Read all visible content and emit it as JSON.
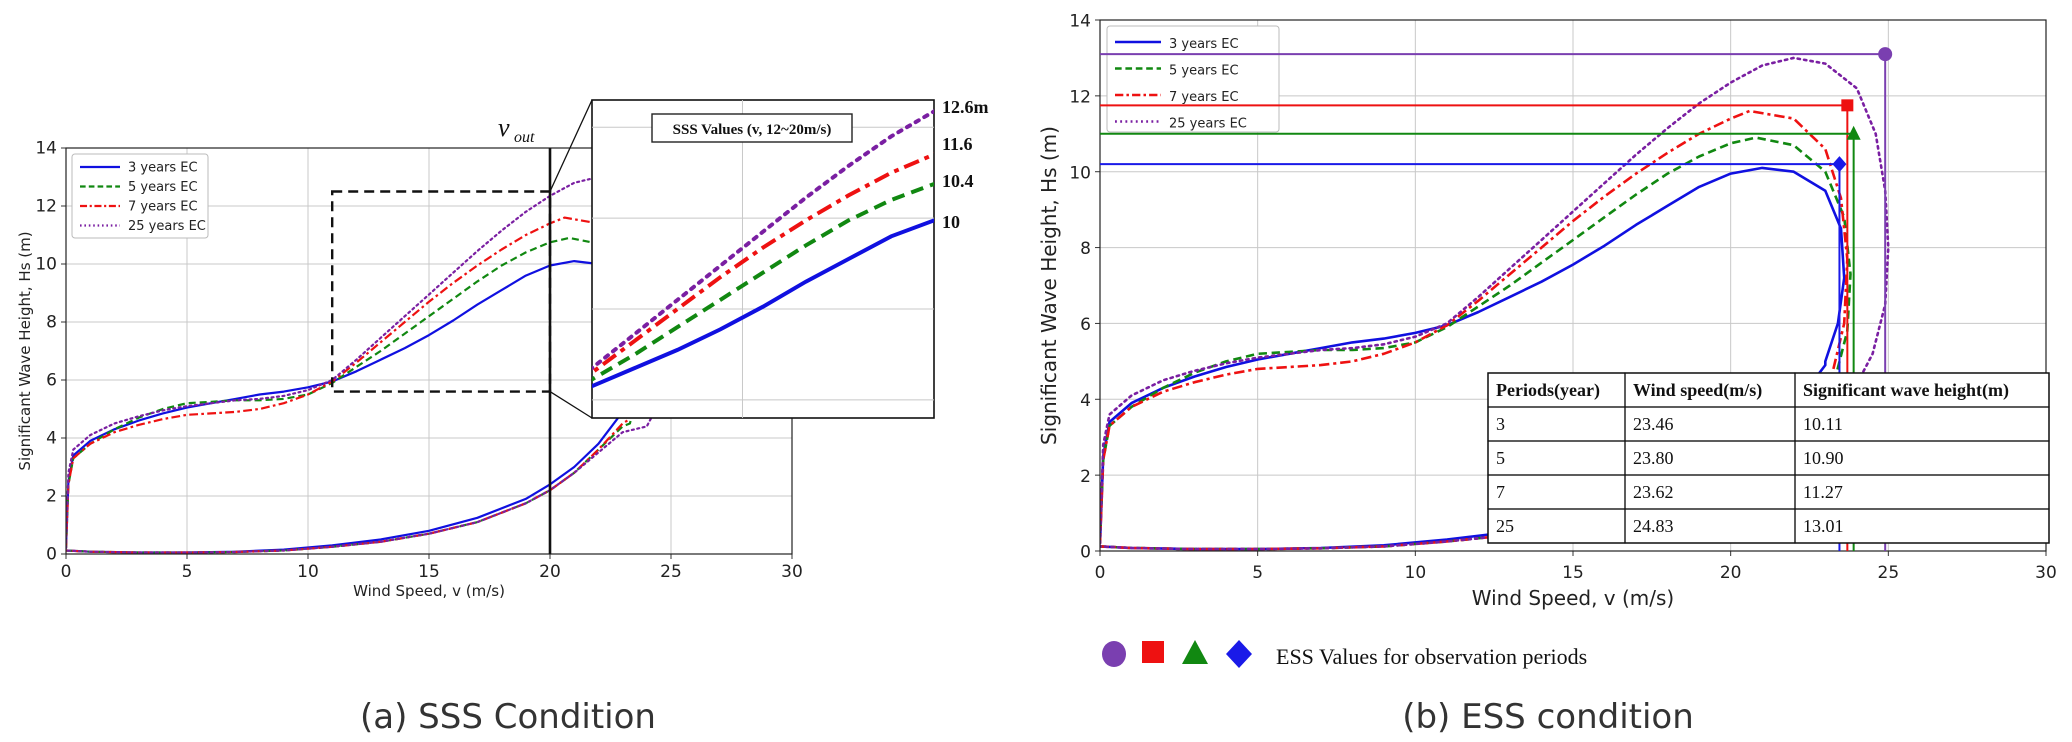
{
  "captions": {
    "a": "(a) SSS Condition",
    "b": "(b) ESS condition"
  },
  "vout_label": "v",
  "vout_sub": "out",
  "inset_title": "SSS Values (v, 12~20m/s)",
  "inset_labels": [
    "12.6m",
    "11.6",
    "10.4",
    "10"
  ],
  "ess_legend_text": "ESS Values for observation periods",
  "table": {
    "headers": [
      "Periods(year)",
      "Wind speed(m/s)",
      "Significant wave height(m)"
    ],
    "rows": [
      [
        "3",
        "23.46",
        "10.11"
      ],
      [
        "5",
        "23.80",
        "10.90"
      ],
      [
        "7",
        "23.62",
        "11.27"
      ],
      [
        "25",
        "24.83",
        "13.01"
      ]
    ]
  },
  "chart_data": [
    {
      "type": "line",
      "panel": "a",
      "title": "",
      "xlabel": "Wind Speed, v (m/s)",
      "ylabel": "Significant Wave Height, Hs (m)",
      "xlim": [
        0,
        30
      ],
      "ylim": [
        0,
        14
      ],
      "xticks": [
        0,
        5,
        10,
        15,
        20,
        25,
        30
      ],
      "yticks": [
        0,
        2,
        4,
        6,
        8,
        10,
        12,
        14
      ],
      "grid": true,
      "legend_position": "top-left",
      "vertical_line_x": 20,
      "zoom_box": {
        "x": [
          11,
          20
        ],
        "y": [
          5.6,
          12.5
        ]
      },
      "series": [
        {
          "name": "3 years EC",
          "color": "#1010e0",
          "dash": "solid",
          "upper": [
            [
              0,
              0.2
            ],
            [
              0.1,
              2.5
            ],
            [
              0.3,
              3.4
            ],
            [
              1,
              3.9
            ],
            [
              2,
              4.3
            ],
            [
              3,
              4.6
            ],
            [
              4,
              4.85
            ],
            [
              5,
              5.05
            ],
            [
              6,
              5.2
            ],
            [
              7,
              5.35
            ],
            [
              8,
              5.5
            ],
            [
              9,
              5.6
            ],
            [
              10,
              5.75
            ],
            [
              11,
              5.95
            ],
            [
              12,
              6.3
            ],
            [
              13,
              6.7
            ],
            [
              14,
              7.1
            ],
            [
              15,
              7.55
            ],
            [
              16,
              8.05
            ],
            [
              17,
              8.6
            ],
            [
              18,
              9.1
            ],
            [
              19,
              9.6
            ],
            [
              20,
              9.95
            ],
            [
              21,
              10.1
            ],
            [
              22,
              10.0
            ],
            [
              23,
              9.5
            ],
            [
              23.5,
              8.5
            ],
            [
              23.6,
              7.2
            ],
            [
              23.4,
              6.0
            ],
            [
              23,
              5.0
            ]
          ],
          "lower": [
            [
              0,
              0.12
            ],
            [
              1,
              0.08
            ],
            [
              3,
              0.05
            ],
            [
              5,
              0.05
            ],
            [
              7,
              0.08
            ],
            [
              9,
              0.15
            ],
            [
              11,
              0.3
            ],
            [
              13,
              0.5
            ],
            [
              15,
              0.8
            ],
            [
              17,
              1.25
            ],
            [
              19,
              1.9
            ],
            [
              20,
              2.4
            ],
            [
              21,
              3.0
            ],
            [
              22,
              3.8
            ],
            [
              23,
              4.9
            ]
          ]
        },
        {
          "name": "5 years EC",
          "color": "#118811",
          "dash": "dashed",
          "upper": [
            [
              0,
              0.2
            ],
            [
              0.1,
              2.4
            ],
            [
              0.3,
              3.3
            ],
            [
              1,
              3.8
            ],
            [
              2,
              4.3
            ],
            [
              3,
              4.7
            ],
            [
              4,
              5.0
            ],
            [
              5,
              5.2
            ],
            [
              6,
              5.25
            ],
            [
              7,
              5.3
            ],
            [
              8,
              5.3
            ],
            [
              9,
              5.35
            ],
            [
              10,
              5.5
            ],
            [
              11,
              5.9
            ],
            [
              12,
              6.45
            ],
            [
              13,
              7.0
            ],
            [
              14,
              7.6
            ],
            [
              15,
              8.2
            ],
            [
              16,
              8.8
            ],
            [
              17,
              9.4
            ],
            [
              18,
              9.95
            ],
            [
              19,
              10.4
            ],
            [
              20,
              10.75
            ],
            [
              20.8,
              10.9
            ],
            [
              22,
              10.7
            ],
            [
              23,
              10.0
            ],
            [
              23.6,
              8.8
            ],
            [
              23.8,
              7.3
            ],
            [
              23.7,
              5.8
            ],
            [
              23.3,
              4.5
            ]
          ],
          "lower": [
            [
              0,
              0.12
            ],
            [
              1,
              0.08
            ],
            [
              3,
              0.05
            ],
            [
              5,
              0.05
            ],
            [
              7,
              0.07
            ],
            [
              9,
              0.12
            ],
            [
              11,
              0.25
            ],
            [
              13,
              0.42
            ],
            [
              15,
              0.7
            ],
            [
              17,
              1.1
            ],
            [
              19,
              1.75
            ],
            [
              20,
              2.2
            ],
            [
              21,
              2.8
            ],
            [
              22,
              3.6
            ],
            [
              23,
              4.4
            ]
          ]
        },
        {
          "name": "7 years EC",
          "color": "#ee1111",
          "dash": "dashdot",
          "upper": [
            [
              0,
              0.2
            ],
            [
              0.1,
              2.4
            ],
            [
              0.3,
              3.3
            ],
            [
              1,
              3.8
            ],
            [
              2,
              4.2
            ],
            [
              3,
              4.45
            ],
            [
              4,
              4.65
            ],
            [
              5,
              4.8
            ],
            [
              6,
              4.85
            ],
            [
              7,
              4.9
            ],
            [
              8,
              5.0
            ],
            [
              9,
              5.2
            ],
            [
              10,
              5.5
            ],
            [
              11,
              5.95
            ],
            [
              12,
              6.6
            ],
            [
              13,
              7.3
            ],
            [
              14,
              8.0
            ],
            [
              15,
              8.7
            ],
            [
              16,
              9.35
            ],
            [
              17,
              9.95
            ],
            [
              18,
              10.5
            ],
            [
              19,
              11.0
            ],
            [
              20,
              11.4
            ],
            [
              20.6,
              11.6
            ],
            [
              22,
              11.4
            ],
            [
              23,
              10.6
            ],
            [
              23.5,
              9.3
            ],
            [
              23.7,
              7.7
            ],
            [
              23.6,
              6.0
            ],
            [
              23.2,
              4.6
            ]
          ],
          "lower": [
            [
              0,
              0.12
            ],
            [
              1,
              0.08
            ],
            [
              3,
              0.05
            ],
            [
              5,
              0.05
            ],
            [
              7,
              0.07
            ],
            [
              9,
              0.12
            ],
            [
              11,
              0.25
            ],
            [
              13,
              0.42
            ],
            [
              15,
              0.7
            ],
            [
              17,
              1.1
            ],
            [
              19,
              1.75
            ],
            [
              20,
              2.2
            ],
            [
              21,
              2.8
            ],
            [
              22,
              3.6
            ],
            [
              23,
              4.5
            ]
          ]
        },
        {
          "name": "25 years EC",
          "color": "#7a1fa2",
          "dash": "dotted",
          "upper": [
            [
              0,
              0.2
            ],
            [
              0.1,
              2.8
            ],
            [
              0.3,
              3.6
            ],
            [
              1,
              4.1
            ],
            [
              2,
              4.5
            ],
            [
              3,
              4.75
            ],
            [
              4,
              4.95
            ],
            [
              5,
              5.1
            ],
            [
              6,
              5.2
            ],
            [
              7,
              5.3
            ],
            [
              8,
              5.35
            ],
            [
              9,
              5.45
            ],
            [
              10,
              5.65
            ],
            [
              11,
              6.0
            ],
            [
              12,
              6.7
            ],
            [
              13,
              7.45
            ],
            [
              14,
              8.2
            ],
            [
              15,
              8.95
            ],
            [
              16,
              9.7
            ],
            [
              17,
              10.45
            ],
            [
              18,
              11.15
            ],
            [
              19,
              11.8
            ],
            [
              20,
              12.35
            ],
            [
              21,
              12.8
            ],
            [
              22,
              13.0
            ],
            [
              23,
              12.85
            ],
            [
              24,
              12.2
            ],
            [
              24.6,
              11.0
            ],
            [
              24.9,
              9.5
            ],
            [
              25,
              8.0
            ],
            [
              24.9,
              6.5
            ],
            [
              24.5,
              5.2
            ],
            [
              24,
              4.4
            ]
          ],
          "lower": [
            [
              0,
              0.12
            ],
            [
              1,
              0.08
            ],
            [
              3,
              0.05
            ],
            [
              5,
              0.05
            ],
            [
              7,
              0.07
            ],
            [
              9,
              0.12
            ],
            [
              11,
              0.25
            ],
            [
              13,
              0.42
            ],
            [
              15,
              0.7
            ],
            [
              17,
              1.1
            ],
            [
              19,
              1.75
            ],
            [
              20,
              2.2
            ],
            [
              21,
              2.8
            ],
            [
              22,
              3.5
            ],
            [
              23,
              4.2
            ],
            [
              24,
              4.4
            ]
          ]
        }
      ],
      "inset": {
        "xlim": [
          12,
          20
        ],
        "ylim": [
          5.6,
          12.6
        ],
        "title": "SSS Values (v, 12~20m/s)",
        "end_values": [
          12.6,
          11.6,
          10.4,
          10
        ]
      }
    },
    {
      "type": "line",
      "panel": "b",
      "title": "",
      "xlabel": "Wind Speed, v (m/s)",
      "ylabel": "Significant Wave Height, Hs (m)",
      "xlim": [
        0,
        30
      ],
      "ylim": [
        0,
        14
      ],
      "xticks": [
        0,
        5,
        10,
        15,
        20,
        25,
        30
      ],
      "yticks": [
        0,
        2,
        4,
        6,
        8,
        10,
        12,
        14
      ],
      "grid": true,
      "legend_position": "top-left",
      "series_ref": "same contours as panel a",
      "ess_points": [
        {
          "period": "25",
          "marker": "circle",
          "color": "#7a3fb0",
          "x": 24.9,
          "y": 13.1
        },
        {
          "period": "7",
          "marker": "square",
          "color": "#ee1111",
          "x": 23.7,
          "y": 11.75
        },
        {
          "period": "5",
          "marker": "triangle",
          "color": "#118811",
          "x": 23.9,
          "y": 11.0
        },
        {
          "period": "3",
          "marker": "diamond",
          "color": "#1a1ae8",
          "x": 23.45,
          "y": 10.2
        }
      ]
    }
  ]
}
